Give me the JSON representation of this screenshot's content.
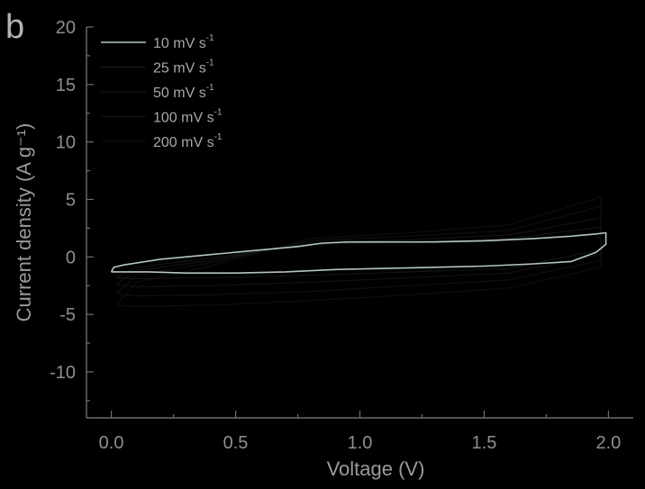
{
  "panel_label": "b",
  "chart_data": {
    "type": "line",
    "title": "",
    "xlabel": "Voltage (V)",
    "ylabel": "Current density (A g⁻¹)",
    "xlim": [
      -0.1,
      2.1
    ],
    "ylim": [
      -14,
      20
    ],
    "xticks": [
      0.0,
      0.5,
      1.0,
      1.5,
      2.0
    ],
    "xtick_labels": [
      "0.0",
      "0.5",
      "1.0",
      "1.5",
      "2.0"
    ],
    "yticks": [
      -10,
      -5,
      0,
      5,
      10,
      15,
      20
    ],
    "ytick_labels": [
      "-10",
      "-5",
      "0",
      "5",
      "10",
      "15",
      "20"
    ],
    "grid": false,
    "legend_position": "top-left",
    "series": [
      {
        "name": "10 mV s",
        "name_sup": "-1",
        "color": "#b4c6bc",
        "x": [
          0.0,
          0.01,
          0.05,
          0.2,
          0.4,
          0.6,
          0.75,
          0.85,
          0.95,
          1.1,
          1.3,
          1.5,
          1.7,
          1.85,
          1.95,
          1.99,
          1.99,
          1.95,
          1.85,
          1.7,
          1.5,
          1.3,
          1.1,
          0.9,
          0.7,
          0.5,
          0.3,
          0.15,
          0.05,
          0.0
        ],
        "y": [
          -1.3,
          -0.9,
          -0.7,
          -0.2,
          0.2,
          0.6,
          0.9,
          1.2,
          1.3,
          1.3,
          1.3,
          1.4,
          1.6,
          1.8,
          2.0,
          2.1,
          1.1,
          0.4,
          -0.4,
          -0.6,
          -0.8,
          -0.9,
          -1.0,
          -1.1,
          -1.3,
          -1.4,
          -1.4,
          -1.3,
          -1.3,
          -1.3
        ]
      },
      {
        "name": "25 mV s",
        "name_sup": "-1",
        "color": "#141414",
        "x": [
          0.02,
          0.1,
          0.4,
          0.8,
          1.2,
          1.6,
          1.97,
          1.97,
          1.6,
          1.2,
          0.8,
          0.4,
          0.1,
          0.02
        ],
        "y": [
          -1.8,
          -0.9,
          -0.1,
          1.1,
          1.3,
          1.6,
          2.6,
          0.6,
          -1.0,
          -1.3,
          -1.6,
          -1.8,
          -1.9,
          -1.8
        ]
      },
      {
        "name": "50 mV s",
        "name_sup": "-1",
        "color": "#121212",
        "x": [
          0.02,
          0.1,
          0.4,
          0.8,
          1.2,
          1.6,
          1.97,
          1.97,
          1.6,
          1.2,
          0.8,
          0.4,
          0.1,
          0.02
        ],
        "y": [
          -2.4,
          -1.2,
          -0.3,
          1.2,
          1.5,
          1.9,
          3.4,
          0.2,
          -1.4,
          -1.8,
          -2.2,
          -2.5,
          -2.6,
          -2.4
        ]
      },
      {
        "name": "100 mV s",
        "name_sup": "-1",
        "color": "#101010",
        "x": [
          0.02,
          0.1,
          0.4,
          0.8,
          1.2,
          1.6,
          1.97,
          1.97,
          1.6,
          1.2,
          0.8,
          0.4,
          0.1,
          0.02
        ],
        "y": [
          -3.2,
          -1.6,
          -0.5,
          1.4,
          1.8,
          2.3,
          4.4,
          -0.3,
          -2.0,
          -2.5,
          -3.0,
          -3.3,
          -3.4,
          -3.2
        ]
      },
      {
        "name": "200 mV s",
        "name_sup": "-1",
        "color": "#0e0e0e",
        "x": [
          0.02,
          0.1,
          0.4,
          0.8,
          1.2,
          1.6,
          1.97,
          1.97,
          1.6,
          1.2,
          0.8,
          0.4,
          0.1,
          0.02
        ],
        "y": [
          -4.2,
          -2.2,
          -0.8,
          1.6,
          2.1,
          2.8,
          5.2,
          -0.9,
          -2.7,
          -3.3,
          -3.8,
          -4.2,
          -4.3,
          -4.2
        ]
      }
    ]
  }
}
